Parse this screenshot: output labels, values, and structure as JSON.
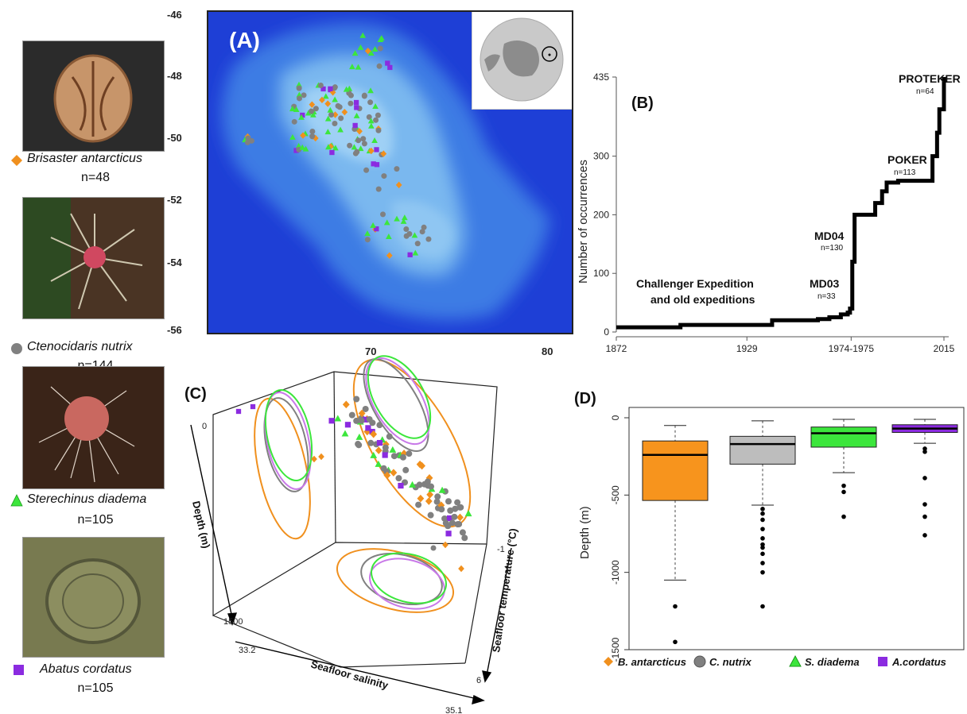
{
  "species": [
    {
      "name": "Brisaster antarcticus",
      "n": "n=48",
      "color": "#f0901e",
      "marker": "diamond"
    },
    {
      "name": "Ctenocidaris nutrix",
      "n": "n=144",
      "color": "#808080",
      "marker": "circle"
    },
    {
      "name": "Sterechinus diadema",
      "n": "n=105",
      "color": "#3ce63c",
      "marker": "triangle"
    },
    {
      "name": "Abatus cordatus",
      "n": "n=105",
      "color": "#8b2be0",
      "marker": "square"
    }
  ],
  "panel_a": {
    "label": "(A)",
    "y_ticks": [
      "-46",
      "-48",
      "-50",
      "-52",
      "-54",
      "-56"
    ],
    "x_ticks": [
      "70",
      "80"
    ]
  },
  "panel_b": {
    "label": "(B)",
    "ylabel": "Number of occurrences",
    "y_ticks": [
      "0",
      "100",
      "200",
      "300",
      "435"
    ],
    "x_ticks": [
      "1872",
      "1929",
      "1974-1975",
      "2015"
    ],
    "annotations": {
      "challenger_1": "Challenger Expedition",
      "challenger_2": "and old expeditions",
      "md03": "MD03",
      "md03_n": "n=33",
      "md04": "MD04",
      "md04_n": "n=130",
      "poker": "POKER",
      "poker_n": "n=113",
      "proteker": "PROTEKER",
      "proteker_n": "n=64"
    }
  },
  "panel_c": {
    "label": "(C)",
    "depth_label": "Depth (m)",
    "depth_top": "0",
    "depth_bottom": "1500",
    "salinity_label": "Seafloor salinity",
    "salinity_min": "33.2",
    "salinity_max": "35.1",
    "temp_label": "Seafloor temperature (°C)",
    "temp_min": "-1",
    "temp_max": "6"
  },
  "panel_d": {
    "label": "(D)",
    "ylabel": "Depth (m)",
    "y_ticks": [
      "0",
      "-500",
      "-1000",
      "-1500"
    ],
    "legend": [
      "B. antarcticus",
      "C. nutrix",
      "S. diadema",
      "A.cordatus"
    ]
  },
  "chart_data": [
    {
      "type": "line",
      "title": "",
      "xlabel": "",
      "ylabel": "Number of occurrences",
      "xlim": [
        1872,
        2015
      ],
      "ylim": [
        0,
        435
      ],
      "series": [
        {
          "x": [
            1872,
            1890,
            1900,
            1929,
            1940,
            1950,
            1960,
            1965,
            1970,
            1973,
            1974,
            1975,
            1976,
            1980,
            1985,
            1988,
            1990,
            1993,
            1995,
            2005,
            2009,
            2010,
            2012,
            2013,
            2015
          ],
          "values": [
            8,
            8,
            12,
            12,
            20,
            20,
            22,
            25,
            30,
            33,
            40,
            120,
            200,
            200,
            220,
            240,
            255,
            255,
            258,
            258,
            258,
            300,
            340,
            380,
            435
          ]
        }
      ]
    },
    {
      "type": "box",
      "ylabel": "Depth (m)",
      "ylim": [
        -1500,
        0
      ],
      "categories": [
        "B. antarcticus",
        "C. nutrix",
        "S. diadema",
        "A.cordatus"
      ],
      "series": [
        {
          "name": "B. antarcticus",
          "whisker_low": -1050,
          "q1": -535,
          "median": -240,
          "q3": -150,
          "whisker_high": -50,
          "outliers": [
            -1220,
            -1450
          ]
        },
        {
          "name": "C. nutrix",
          "whisker_low": -565,
          "q1": -300,
          "median": -170,
          "q3": -120,
          "whisker_high": -20,
          "outliers": [
            -590,
            -620,
            -660,
            -720,
            -780,
            -820,
            -840,
            -880,
            -940,
            -1000,
            -1220
          ]
        },
        {
          "name": "S. diadema",
          "whisker_low": -355,
          "q1": -190,
          "median": -100,
          "q3": -60,
          "whisker_high": -10,
          "outliers": [
            -440,
            -480,
            -640
          ]
        },
        {
          "name": "A.cordatus",
          "whisker_low": -165,
          "q1": -95,
          "median": -70,
          "q3": -45,
          "whisker_high": -10,
          "outliers": [
            -200,
            -220,
            -390,
            -560,
            -640,
            -760
          ]
        }
      ]
    }
  ]
}
